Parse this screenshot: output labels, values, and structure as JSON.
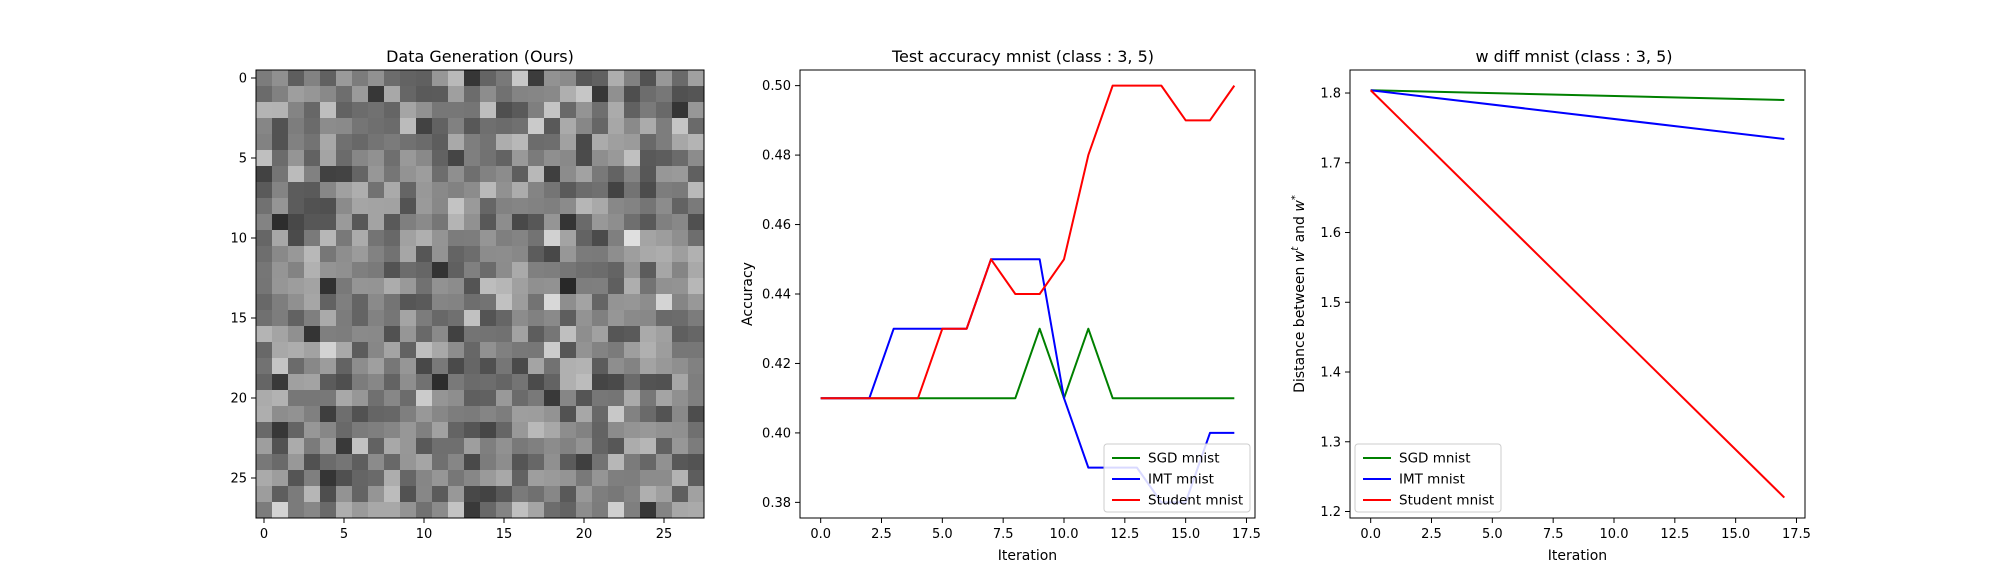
{
  "chart_data": [
    {
      "type": "heatmap",
      "title": "Data Generation (Ours)",
      "colormap": "gray",
      "rows": 28,
      "cols": 28,
      "xticks": [
        "0",
        "5",
        "10",
        "15",
        "20",
        "25"
      ],
      "yticks": [
        "0",
        "5",
        "10",
        "15",
        "20",
        "25"
      ],
      "note_values": "random pixel intensities; individual values not recoverable from image"
    },
    {
      "type": "line",
      "title": "Test accuracy mnist (class : 3, 5)",
      "xlabel": "Iteration",
      "ylabel": "Accuracy",
      "xlim": [
        -0.85,
        17.85
      ],
      "ylim": [
        0.3755,
        0.5045
      ],
      "xticks": [
        "0.0",
        "2.5",
        "5.0",
        "7.5",
        "10.0",
        "12.5",
        "15.0",
        "17.5"
      ],
      "yticks": [
        "0.38",
        "0.40",
        "0.42",
        "0.44",
        "0.46",
        "0.48",
        "0.50"
      ],
      "legend_position": "lower right",
      "x": [
        0,
        1,
        2,
        3,
        4,
        5,
        6,
        7,
        8,
        9,
        10,
        11,
        12,
        13,
        14,
        15,
        16,
        17
      ],
      "series": [
        {
          "name": "SGD mnist",
          "color": "#008000",
          "values": [
            0.41,
            0.41,
            0.41,
            0.41,
            0.41,
            0.41,
            0.41,
            0.41,
            0.41,
            0.43,
            0.41,
            0.43,
            0.41,
            0.41,
            0.41,
            0.41,
            0.41,
            0.41
          ]
        },
        {
          "name": "IMT mnist",
          "color": "#0000ff",
          "values": [
            0.41,
            0.41,
            0.41,
            0.43,
            0.43,
            0.43,
            0.43,
            0.45,
            0.45,
            0.45,
            0.41,
            0.39,
            0.39,
            0.39,
            0.38,
            0.38,
            0.4,
            0.4
          ]
        },
        {
          "name": "Student mnist",
          "color": "#ff0000",
          "values": [
            0.41,
            0.41,
            0.41,
            0.41,
            0.41,
            0.43,
            0.43,
            0.45,
            0.44,
            0.44,
            0.45,
            0.48,
            0.5,
            0.5,
            0.5,
            0.49,
            0.49,
            0.5
          ]
        }
      ]
    },
    {
      "type": "line",
      "title": "w diff mnist (class : 3, 5)",
      "xlabel": "Iteration",
      "ylabel": "Distance between w^t and w^*",
      "xlim": [
        -0.85,
        17.85
      ],
      "ylim": [
        1.1907,
        1.833
      ],
      "xticks": [
        "0.0",
        "2.5",
        "5.0",
        "7.5",
        "10.0",
        "12.5",
        "15.0",
        "17.5"
      ],
      "yticks": [
        "1.2",
        "1.3",
        "1.4",
        "1.5",
        "1.6",
        "1.7",
        "1.8"
      ],
      "legend_position": "lower left",
      "x": [
        0,
        17
      ],
      "series": [
        {
          "name": "SGD mnist",
          "color": "#008000",
          "values": [
            1.804,
            1.79
          ]
        },
        {
          "name": "IMT mnist",
          "color": "#0000ff",
          "values": [
            1.804,
            1.734
          ]
        },
        {
          "name": "Student mnist",
          "color": "#ff0000",
          "values": [
            1.804,
            1.22
          ]
        }
      ]
    }
  ]
}
